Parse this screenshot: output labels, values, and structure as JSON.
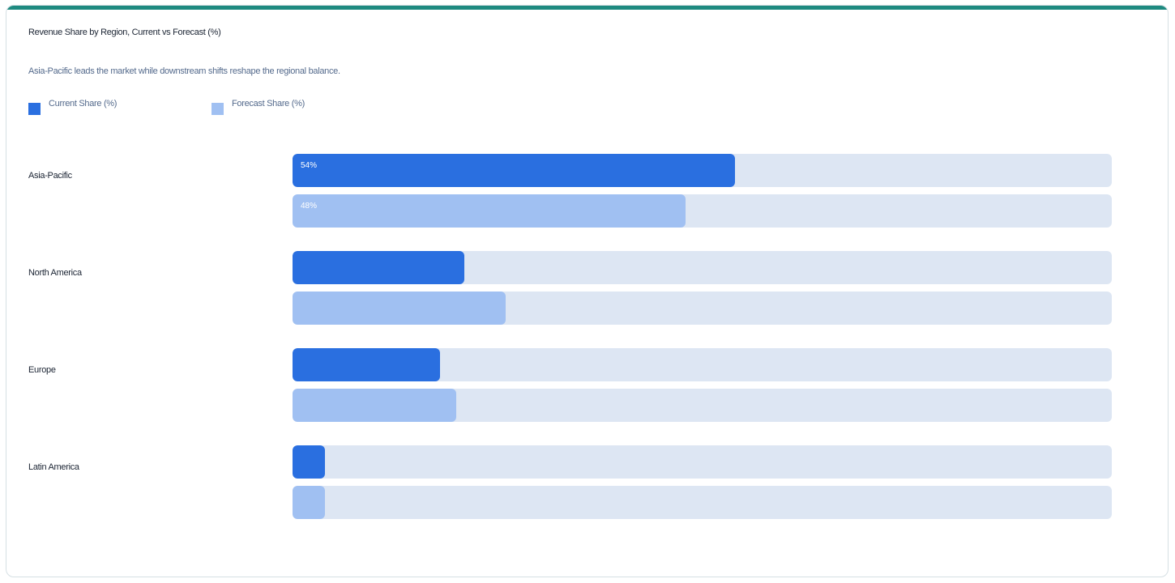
{
  "colors": {
    "accent": "#1e8a80",
    "current": "#2a6fe0",
    "forecast": "#a0c0f2",
    "track": "#dde6f3",
    "label_dark": "#1b2433",
    "label_muted": "#546a8c"
  },
  "chart_data": {
    "type": "bar",
    "orientation": "horizontal",
    "title": "Revenue Share by Region, Current vs Forecast (%)",
    "subtitle": "Asia-Pacific leads the market while downstream shifts reshape the regional balance.",
    "categories": [
      "Asia-Pacific",
      "North America",
      "Europe",
      "Latin America"
    ],
    "series": [
      {
        "name": "Current Share (%)",
        "values": [
          54,
          21,
          18,
          4
        ],
        "labels": [
          "54%",
          "",
          "",
          ""
        ]
      },
      {
        "name": "Forecast Share (%)",
        "values": [
          48,
          26,
          20,
          4
        ],
        "labels": [
          "48%",
          "",
          "",
          ""
        ]
      }
    ],
    "xlim": [
      0,
      100
    ],
    "legend_position": "top-left",
    "grid": false
  }
}
